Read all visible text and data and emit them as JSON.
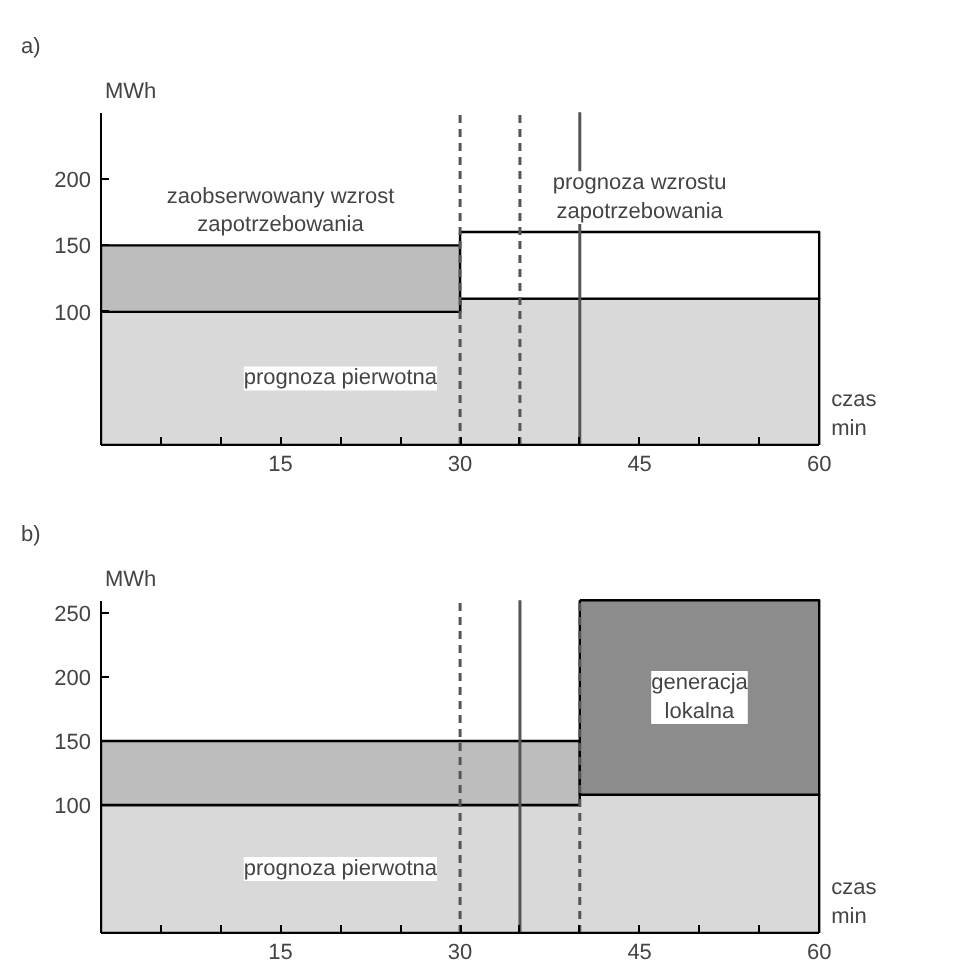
{
  "chart_data": [
    {
      "type": "area",
      "stacked": true,
      "title": "a)",
      "xlabel": "czas\nmin",
      "ylabel": "MWh",
      "x": [
        0,
        30,
        30,
        60
      ],
      "series": [
        {
          "name": "prognoza pierwotna",
          "color": "#d9d9d9",
          "values": [
            100,
            100,
            110,
            110
          ]
        },
        {
          "name": "zaobserwowany wzrost\nzapotrzebowania",
          "color": "#bdbdbd",
          "values": [
            50,
            50,
            null,
            null
          ]
        },
        {
          "name": "prognoza wzrostu\nzapotrzebowania",
          "color": "#ffffff",
          "values": [
            null,
            null,
            50,
            50
          ]
        }
      ],
      "xlim": [
        0,
        60
      ],
      "ylim": [
        0,
        250
      ],
      "xticks": [
        {
          "value": 5,
          "label": null
        },
        {
          "value": 10,
          "label": null
        },
        15,
        {
          "value": 20,
          "label": null
        },
        {
          "value": 25,
          "label": null
        },
        30,
        {
          "value": 35,
          "label": null
        },
        {
          "value": 40,
          "label": null
        },
        45,
        {
          "value": 50,
          "label": null
        },
        {
          "value": 55,
          "label": null
        },
        60
      ],
      "yticks": [
        100,
        150,
        200
      ],
      "ref_lines": [
        {
          "axis": "x",
          "value": 30,
          "line_style": "dashed"
        },
        {
          "axis": "x",
          "value": 35,
          "line_style": "dashed"
        },
        {
          "axis": "x",
          "value": 40,
          "line_style": "solid"
        }
      ]
    },
    {
      "type": "area",
      "stacked": true,
      "title": "b)",
      "xlabel": "czas\nmin",
      "ylabel": "MWh",
      "x": [
        0,
        40,
        40,
        60
      ],
      "series": [
        {
          "name": "prognoza pierwotna",
          "color": "#d9d9d9",
          "values": [
            100,
            100,
            108,
            108
          ]
        },
        {
          "color": "#bdbdbd",
          "values": [
            50,
            50,
            null,
            null
          ]
        },
        {
          "name": "generacja\nlokalna",
          "color": "#8c8c8c",
          "values": [
            null,
            null,
            152,
            152
          ]
        }
      ],
      "xlim": [
        0,
        60
      ],
      "ylim": [
        0,
        260
      ],
      "xticks": [
        {
          "value": 5,
          "label": null
        },
        {
          "value": 10,
          "label": null
        },
        15,
        {
          "value": 20,
          "label": null
        },
        {
          "value": 25,
          "label": null
        },
        30,
        {
          "value": 35,
          "label": null
        },
        {
          "value": 40,
          "label": null
        },
        45,
        {
          "value": 50,
          "label": null
        },
        {
          "value": 55,
          "label": null
        },
        60
      ],
      "yticks": [
        100,
        150,
        200,
        250
      ],
      "ref_lines": [
        {
          "axis": "x",
          "value": 30,
          "line_style": "dashed"
        },
        {
          "axis": "x",
          "value": 35,
          "line_style": "solid"
        },
        {
          "axis": "x",
          "value": 40,
          "line_style": "dashed"
        }
      ]
    }
  ]
}
